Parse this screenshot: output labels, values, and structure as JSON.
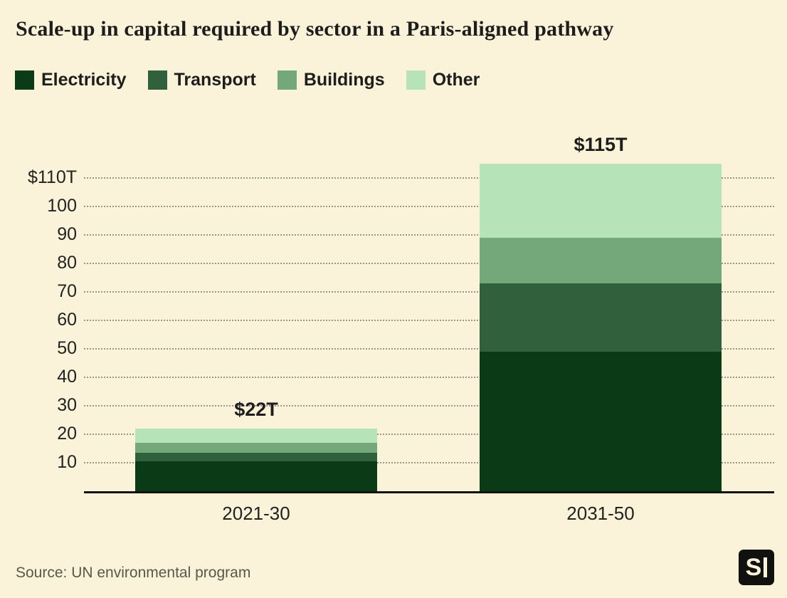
{
  "title": "Scale-up in capital required by sector in a Paris-aligned pathway",
  "source": "Source: UN environmental program",
  "logo": {
    "text": "S"
  },
  "colors": {
    "background": "#faf3da",
    "electricity": "#0b3a16",
    "transport": "#31603c",
    "buildings": "#74a77a",
    "other": "#b6e3b7",
    "axis": "#111110",
    "gridline": "#97968a",
    "text": "#1d1d1b",
    "source_text": "#585749"
  },
  "legend": [
    {
      "label": "Electricity",
      "color_key": "electricity"
    },
    {
      "label": "Transport",
      "color_key": "transport"
    },
    {
      "label": "Buildings",
      "color_key": "buildings"
    },
    {
      "label": "Other",
      "color_key": "other"
    }
  ],
  "chart_data": {
    "type": "bar",
    "stacked": true,
    "units": "trillion USD",
    "title": "Scale-up in capital required by sector in a Paris-aligned pathway",
    "categories": [
      "2021-30",
      "2031-50"
    ],
    "series": [
      {
        "name": "Electricity",
        "values": [
          10.5,
          49
        ]
      },
      {
        "name": "Transport",
        "values": [
          3,
          24
        ]
      },
      {
        "name": "Buildings",
        "values": [
          3.5,
          16
        ]
      },
      {
        "name": "Other",
        "values": [
          5,
          26
        ]
      }
    ],
    "totals": [
      {
        "value": 22,
        "label": "$22T"
      },
      {
        "value": 115,
        "label": "$115T"
      }
    ],
    "y_ticks": [
      {
        "value": 110,
        "label": "$110T"
      },
      {
        "value": 100,
        "label": "100"
      },
      {
        "value": 90,
        "label": "90"
      },
      {
        "value": 80,
        "label": "80"
      },
      {
        "value": 70,
        "label": "70"
      },
      {
        "value": 60,
        "label": "60"
      },
      {
        "value": 50,
        "label": "50"
      },
      {
        "value": 40,
        "label": "40"
      },
      {
        "value": 30,
        "label": "30"
      },
      {
        "value": 20,
        "label": "20"
      },
      {
        "value": 10,
        "label": "10"
      }
    ],
    "ylim": [
      0,
      120
    ],
    "grid": "horizontal-dotted",
    "legend_position": "top-left"
  }
}
